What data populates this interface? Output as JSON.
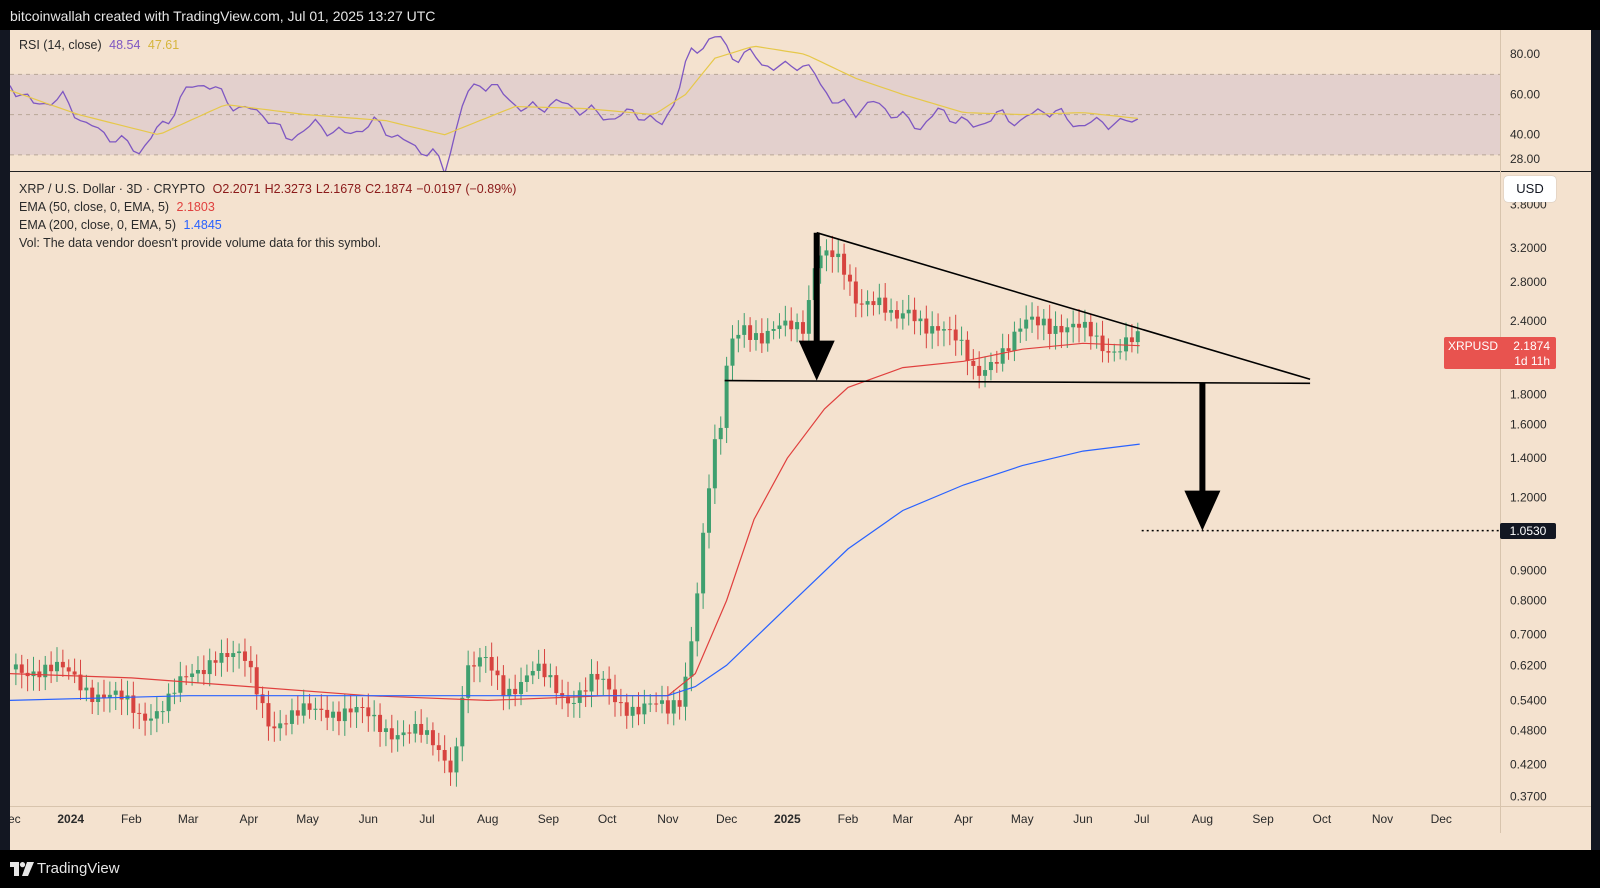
{
  "header": {
    "caption": "bitcoinwallah created with TradingView.com, Jul 01, 2025 13:27 UTC"
  },
  "footer": {
    "brand": "TradingView"
  },
  "rsi_legend": {
    "label": "RSI (14, close)",
    "rsi_value": "48.54",
    "ma_value": "47.61"
  },
  "main_legend": {
    "symbol": "XRP / U.S. Dollar · 3D · CRYPTO",
    "open": "O2.2071",
    "high": "H2.3273",
    "low": "L2.1678",
    "close": "C2.1874",
    "change": "−0.0197 (−0.89%)",
    "ema50_label": "EMA (50, close, 0, EMA, 5)",
    "ema50_value": "2.1803",
    "ema200_label": "EMA (200, close, 0, EMA, 5)",
    "ema200_value": "1.4845",
    "vol_note": "Vol: The data vendor doesn't provide volume data for this symbol."
  },
  "currency_button": "USD",
  "price_tag": {
    "symbol": "XRPUSD",
    "price": "2.1874",
    "countdown": "1d 11h"
  },
  "target_tag": "1.0530",
  "colors": {
    "background": "#f4e2cf",
    "up_candle": "#3f9f6f",
    "down_candle": "#d7433f",
    "ema50": "#e0403e",
    "ema200": "#2962ff",
    "rsi": "#7e57c2",
    "rsi_ma": "#e6c84a",
    "price_tag": "#e8534f"
  },
  "chart_data": [
    {
      "type": "line",
      "title": "RSI (14, close)",
      "ylim": [
        22,
        92
      ],
      "yticks": [
        80,
        60,
        40,
        28
      ],
      "ytick_labels": [
        "80.00",
        "60.00",
        "40.00",
        "28.00"
      ],
      "band": [
        30,
        70
      ],
      "midline": 50,
      "x_range": [
        "2023-12-01",
        "2025-12-31"
      ],
      "series": [
        {
          "name": "RSI",
          "x": [
            "2023-12-01",
            "2023-12-13",
            "2023-12-28",
            "2024-01-09",
            "2024-01-24",
            "2024-02-05",
            "2024-02-20",
            "2024-03-01",
            "2024-03-10",
            "2024-03-25",
            "2024-04-10",
            "2024-04-20",
            "2024-05-05",
            "2024-05-20",
            "2024-06-05",
            "2024-06-20",
            "2024-07-05",
            "2024-07-10",
            "2024-07-20",
            "2024-07-28",
            "2024-08-05",
            "2024-08-20",
            "2024-09-05",
            "2024-09-20",
            "2024-10-05",
            "2024-10-15",
            "2024-10-28",
            "2024-11-05",
            "2024-11-12",
            "2024-11-20",
            "2024-11-28",
            "2024-12-05",
            "2024-12-15",
            "2024-12-25",
            "2025-01-05",
            "2025-01-15",
            "2025-01-25",
            "2025-02-05",
            "2025-02-15",
            "2025-02-25",
            "2025-03-10",
            "2025-03-20",
            "2025-04-05",
            "2025-04-20",
            "2025-05-01",
            "2025-05-10",
            "2025-05-20",
            "2025-06-01",
            "2025-06-10",
            "2025-06-20",
            "2025-06-30"
          ],
          "values": [
            65,
            55,
            58,
            45,
            38,
            32,
            48,
            63,
            66,
            54,
            50,
            38,
            45,
            40,
            46,
            36,
            30,
            22,
            58,
            66,
            63,
            52,
            56,
            52,
            48,
            52,
            44,
            58,
            80,
            86,
            88,
            78,
            80,
            72,
            76,
            70,
            56,
            52,
            56,
            50,
            44,
            52,
            44,
            50,
            46,
            53,
            50,
            44,
            47,
            45,
            49
          ]
        },
        {
          "name": "RSI MA",
          "x": [
            "2023-12-01",
            "2024-01-05",
            "2024-02-15",
            "2024-03-20",
            "2024-04-30",
            "2024-06-10",
            "2024-07-10",
            "2024-08-15",
            "2024-09-20",
            "2024-10-25",
            "2024-11-10",
            "2024-11-25",
            "2024-12-15",
            "2025-01-10",
            "2025-02-05",
            "2025-03-01",
            "2025-04-01",
            "2025-05-01",
            "2025-06-01",
            "2025-06-30"
          ],
          "values": [
            62,
            50,
            40,
            55,
            50,
            47,
            40,
            54,
            53,
            50,
            60,
            78,
            84,
            80,
            68,
            60,
            51,
            50,
            51,
            48
          ]
        }
      ]
    },
    {
      "type": "candlestick",
      "title": "XRP / U.S. Dollar · 3D · CRYPTO",
      "y_scale": "log",
      "ylim": [
        0.355,
        4.3
      ],
      "yticks": [
        3.8,
        3.2,
        2.8,
        2.4,
        1.8,
        1.6,
        1.4,
        1.2,
        0.9,
        0.8,
        0.7,
        0.62,
        0.54,
        0.48,
        0.42,
        0.37
      ],
      "ytick_labels": [
        "3.8000",
        "3.2000",
        "2.8000",
        "2.4000",
        "1.8000",
        "1.6000",
        "1.4000",
        "1.2000",
        "0.9000",
        "0.8000",
        "0.7000",
        "0.6200",
        "0.5400",
        "0.4800",
        "0.4200",
        "0.3700"
      ],
      "x_range": [
        "2023-12-01",
        "2025-12-31"
      ],
      "xticks": [
        "2023-12-01",
        "2024-01-01",
        "2024-02-01",
        "2024-03-01",
        "2024-04-01",
        "2024-05-01",
        "2024-06-01",
        "2024-07-01",
        "2024-08-01",
        "2024-09-01",
        "2024-10-01",
        "2024-11-01",
        "2024-12-01",
        "2025-01-01",
        "2025-02-01",
        "2025-03-01",
        "2025-04-01",
        "2025-05-01",
        "2025-06-01",
        "2025-07-01",
        "2025-08-01",
        "2025-09-01",
        "2025-10-01",
        "2025-11-01",
        "2025-12-01"
      ],
      "xtick_labels": [
        "Dec",
        "2024",
        "Feb",
        "Mar",
        "Apr",
        "May",
        "Jun",
        "Jul",
        "Aug",
        "Sep",
        "Oct",
        "Nov",
        "Dec",
        "2025",
        "Feb",
        "Mar",
        "Apr",
        "May",
        "Jun",
        "Jul",
        "Aug",
        "Sep",
        "Oct",
        "Nov",
        "Dec"
      ],
      "close_series": {
        "x": [
          "2023-12-01",
          "2023-12-15",
          "2024-01-01",
          "2024-01-20",
          "2024-02-05",
          "2024-02-20",
          "2024-03-05",
          "2024-03-15",
          "2024-03-30",
          "2024-04-12",
          "2024-04-25",
          "2024-05-10",
          "2024-05-25",
          "2024-06-10",
          "2024-06-25",
          "2024-07-06",
          "2024-07-15",
          "2024-07-20",
          "2024-07-31",
          "2024-08-10",
          "2024-08-25",
          "2024-09-10",
          "2024-09-25",
          "2024-10-05",
          "2024-10-20",
          "2024-11-01",
          "2024-11-08",
          "2024-11-12",
          "2024-11-16",
          "2024-11-20",
          "2024-11-24",
          "2024-11-28",
          "2024-12-03",
          "2024-12-10",
          "2024-12-20",
          "2024-12-30",
          "2025-01-10",
          "2025-01-16",
          "2025-01-25",
          "2025-02-05",
          "2025-02-15",
          "2025-02-25",
          "2025-03-05",
          "2025-03-20",
          "2025-04-07",
          "2025-04-15",
          "2025-04-25",
          "2025-05-05",
          "2025-05-12",
          "2025-05-25",
          "2025-06-05",
          "2025-06-15",
          "2025-06-25",
          "2025-06-30"
        ],
        "values": [
          0.61,
          0.62,
          0.59,
          0.55,
          0.51,
          0.54,
          0.6,
          0.66,
          0.62,
          0.5,
          0.5,
          0.53,
          0.51,
          0.49,
          0.47,
          0.45,
          0.42,
          0.6,
          0.62,
          0.57,
          0.6,
          0.55,
          0.58,
          0.54,
          0.53,
          0.51,
          0.55,
          0.66,
          0.85,
          1.1,
          1.4,
          1.55,
          2.2,
          2.4,
          2.25,
          2.3,
          2.4,
          3.2,
          3.05,
          2.6,
          2.7,
          2.35,
          2.45,
          2.38,
          1.95,
          2.1,
          2.15,
          2.4,
          2.45,
          2.3,
          2.28,
          2.18,
          2.2,
          2.19
        ]
      },
      "lines": [
        {
          "name": "EMA (50, close, 0, EMA, 5)",
          "x": [
            "2023-12-01",
            "2024-02-01",
            "2024-04-01",
            "2024-06-01",
            "2024-08-01",
            "2024-10-01",
            "2024-11-01",
            "2024-11-15",
            "2024-12-01",
            "2024-12-15",
            "2025-01-01",
            "2025-01-20",
            "2025-02-01",
            "2025-03-01",
            "2025-04-01",
            "2025-05-01",
            "2025-06-01",
            "2025-06-30"
          ],
          "values": [
            0.6,
            0.59,
            0.57,
            0.55,
            0.54,
            0.55,
            0.55,
            0.6,
            0.8,
            1.1,
            1.4,
            1.7,
            1.85,
            2.0,
            2.05,
            2.15,
            2.2,
            2.18
          ]
        },
        {
          "name": "EMA (200, close, 0, EMA, 5)",
          "x": [
            "2023-12-01",
            "2024-03-01",
            "2024-06-01",
            "2024-09-01",
            "2024-11-01",
            "2024-11-15",
            "2024-12-01",
            "2025-01-01",
            "2025-02-01",
            "2025-03-01",
            "2025-04-01",
            "2025-05-01",
            "2025-06-01",
            "2025-06-30"
          ],
          "values": [
            0.54,
            0.55,
            0.55,
            0.55,
            0.55,
            0.57,
            0.62,
            0.78,
            0.98,
            1.14,
            1.26,
            1.36,
            1.44,
            1.48
          ]
        }
      ],
      "annotations": {
        "upper_trendline": {
          "x": [
            "2025-01-16",
            "2025-09-25"
          ],
          "y": [
            3.4,
            1.91
          ]
        },
        "support_line": {
          "x": [
            "2024-11-30",
            "2025-09-25"
          ],
          "y": [
            1.9,
            1.88
          ]
        },
        "target_line": {
          "x": [
            "2025-07-01",
            "2025-12-31"
          ],
          "y": [
            1.053,
            1.053
          ]
        }
      }
    }
  ]
}
